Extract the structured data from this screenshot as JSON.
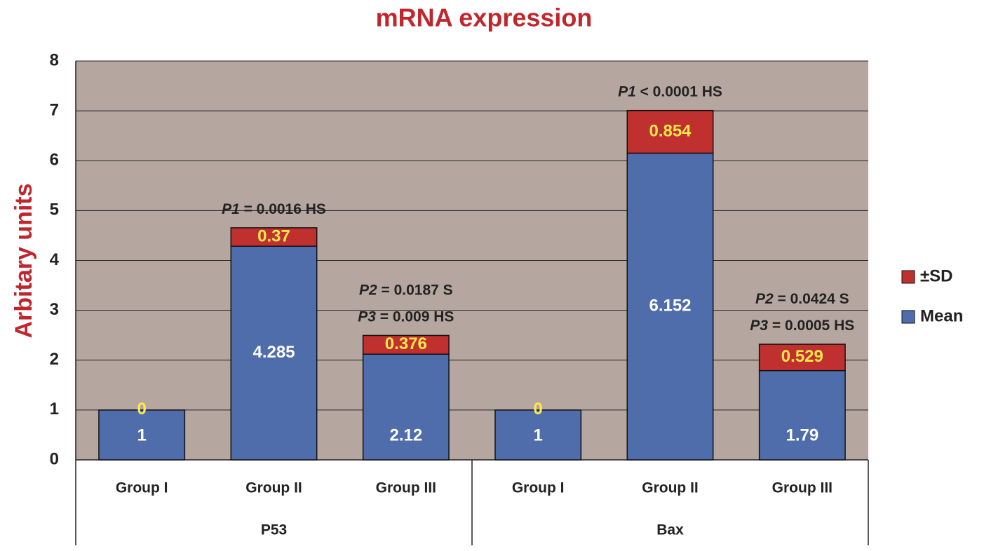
{
  "chart_data": {
    "type": "stacked-bar",
    "title": "mRNA expression",
    "y_label": "Arbitary units",
    "categories": [
      "Group I",
      "Group II",
      "Group III",
      "Group I",
      "Group II",
      "Group III"
    ],
    "groups": [
      "P53",
      "Bax"
    ],
    "series": [
      {
        "name": "Mean",
        "color": "#4f6dab",
        "label_color": "#ffffff",
        "values": [
          1,
          4.285,
          2.12,
          1,
          6.152,
          1.79
        ]
      },
      {
        "name": "±SD",
        "color": "#c0302e",
        "label_color": "#ffe94a",
        "values": [
          0,
          0.37,
          0.376,
          0,
          0.854,
          0.529
        ]
      }
    ],
    "annotations": [
      null,
      [
        "P1 = 0.0016 HS"
      ],
      [
        "P2 = 0.0187 S",
        "P3 = 0.009 HS"
      ],
      null,
      [
        "P1 < 0.0001 HS"
      ],
      [
        "P2 = 0.0424 S",
        "P3 = 0.0005 HS"
      ]
    ],
    "ylim": [
      0,
      8
    ],
    "yticks": [
      0,
      1,
      2,
      3,
      4,
      5,
      6,
      7,
      8
    ],
    "grid": true,
    "legend": "right"
  }
}
